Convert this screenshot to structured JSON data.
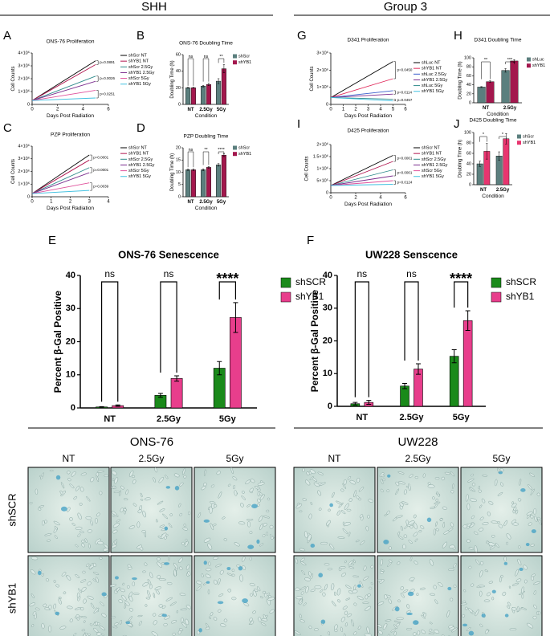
{
  "sections": {
    "left": "SHH",
    "right": "Group 3"
  },
  "chart_data": [
    {
      "panel": "A",
      "type": "line",
      "title": "ONS-76 Proliferation",
      "x_label": "Days Post Radiation",
      "y_label": "Cell Counts",
      "xlim": [
        0,
        6
      ],
      "xticks": [
        0,
        2,
        4,
        6
      ],
      "ylim": [
        0,
        4000000
      ],
      "yticks": [
        0,
        {
          "value": 1000000,
          "label": "1×10⁶"
        },
        {
          "value": 2000000,
          "label": "2×10⁶"
        },
        {
          "value": 3000000,
          "label": "3×10⁶"
        },
        {
          "value": 4000000,
          "label": "4×10⁶"
        }
      ],
      "x": [
        0,
        5
      ],
      "series": [
        {
          "name": "shScr NT",
          "color": "#000000",
          "values": [
            300000,
            3400000
          ]
        },
        {
          "name": "shYB1 NT",
          "color": "#b0154f",
          "values": [
            300000,
            3100000
          ]
        },
        {
          "name": "shScr 2.5Gy",
          "color": "#2e8b8b",
          "values": [
            300000,
            2200000
          ]
        },
        {
          "name": "shYB1 2.5Gy",
          "color": "#7b2d8e",
          "values": [
            300000,
            1800000
          ]
        },
        {
          "name": "shScr 5Gy",
          "color": "#e0529c",
          "values": [
            300000,
            1100000
          ]
        },
        {
          "name": "shYB1 5Gy",
          "color": "#40c0e0",
          "values": [
            300000,
            500000
          ]
        }
      ],
      "annotations": [
        "p=0.0891",
        "p=0.0026",
        "p=0.0251"
      ]
    },
    {
      "panel": "B",
      "type": "bar",
      "title": "ONS-76 Doubling Time",
      "x_label": "Condition",
      "y_label": "Doubling Time (h)",
      "ylim": [
        0,
        60
      ],
      "yticks": [
        0,
        20,
        40,
        60
      ],
      "categories": [
        "NT",
        "2.5Gy",
        "5Gy"
      ],
      "series": [
        {
          "name": "shScr",
          "color": "#5b7f7e",
          "values": [
            20,
            22,
            28
          ],
          "errors": [
            0.5,
            1,
            3
          ]
        },
        {
          "name": "shYB1",
          "color": "#a3174d",
          "values": [
            20,
            24,
            43
          ],
          "errors": [
            0.5,
            1.5,
            5
          ]
        }
      ],
      "significance": [
        "ns",
        "ns",
        "**"
      ]
    },
    {
      "panel": "C",
      "type": "line",
      "title": "PZP Proliferation",
      "x_label": "Days Post Radiation",
      "y_label": "Cell Counts",
      "xlim": [
        0,
        4
      ],
      "xticks": [
        0,
        1,
        2,
        3,
        4
      ],
      "ylim": [
        0,
        4000000
      ],
      "yticks": [
        0,
        {
          "value": 1000000,
          "label": "1×10⁶"
        },
        {
          "value": 2000000,
          "label": "2×10⁶"
        },
        {
          "value": 3000000,
          "label": "3×10⁶"
        },
        {
          "value": 4000000,
          "label": "4×10⁶"
        }
      ],
      "x": [
        0,
        3
      ],
      "series": [
        {
          "name": "shScr NT",
          "color": "#000000",
          "values": [
            250000,
            3300000
          ]
        },
        {
          "name": "shYB1 NT",
          "color": "#b0154f",
          "values": [
            250000,
            2900000
          ]
        },
        {
          "name": "shScr 2.5Gy",
          "color": "#2e8b8b",
          "values": [
            250000,
            2300000
          ]
        },
        {
          "name": "shYB1 2.5Gy",
          "color": "#7b2d8e",
          "values": [
            250000,
            1900000
          ]
        },
        {
          "name": "shScr 5Gy",
          "color": "#e0529c",
          "values": [
            250000,
            1100000
          ]
        },
        {
          "name": "shYB1 5Gy",
          "color": "#40c0e0",
          "values": [
            250000,
            500000
          ]
        }
      ],
      "annotations": [
        "p=0.0001",
        "p=0.0001",
        "p=0.0039"
      ]
    },
    {
      "panel": "D",
      "type": "bar",
      "title": "PZP Doubling Time",
      "x_label": "Condition",
      "y_label": "Doubling Time (h)",
      "ylim": [
        0,
        20
      ],
      "yticks": [
        0,
        5,
        10,
        15,
        20
      ],
      "categories": [
        "NT",
        "2.5Gy",
        "5Gy"
      ],
      "series": [
        {
          "name": "shScr",
          "color": "#5b7f7e",
          "values": [
            11,
            11,
            13
          ],
          "errors": [
            0.3,
            0.4,
            0.5
          ]
        },
        {
          "name": "shYB1",
          "color": "#a3174d",
          "values": [
            11,
            12,
            17
          ],
          "errors": [
            0.4,
            0.3,
            0.6
          ]
        }
      ],
      "significance": [
        "ns",
        "**",
        "****"
      ]
    },
    {
      "panel": "G",
      "type": "line",
      "title": "D341 Proliferation",
      "x_label": "Days Post Radiation",
      "y_label": "Cell Counts",
      "xlim": [
        0,
        6
      ],
      "xticks": [
        0,
        1,
        2,
        3,
        4,
        5,
        6
      ],
      "ylim": [
        0,
        3000000
      ],
      "yticks": [
        0,
        {
          "value": 1000000,
          "label": "1×10⁶"
        },
        {
          "value": 2000000,
          "label": "2×10⁶"
        },
        {
          "value": 3000000,
          "label": "3×10⁶"
        }
      ],
      "x": [
        0,
        5
      ],
      "series": [
        {
          "name": "shLuc NT",
          "color": "#000000",
          "values": [
            400000,
            2500000
          ]
        },
        {
          "name": "shYB1 NT",
          "color": "#e0295a",
          "values": [
            400000,
            1500000
          ]
        },
        {
          "name": "shLuc 2.5Gy",
          "color": "#3a5fcd",
          "values": [
            400000,
            800000
          ]
        },
        {
          "name": "shYB1 2.5Gy",
          "color": "#7b2d8e",
          "values": [
            400000,
            600000
          ]
        },
        {
          "name": "shLuc 5Gy",
          "color": "#2e8b8b",
          "values": [
            400000,
            300000
          ]
        },
        {
          "name": "shYB1 5Gy",
          "color": "#40c0e0",
          "values": [
            400000,
            200000
          ]
        }
      ],
      "annotations": [
        "p=0.0450",
        "p=0.0114",
        "p=0.0457"
      ]
    },
    {
      "panel": "H",
      "type": "bar",
      "title": "D341 Doubling Time",
      "x_label": "Condition",
      "y_label": "Doubling Time (h)",
      "ylim": [
        0,
        100
      ],
      "yticks": [
        0,
        20,
        40,
        60,
        80,
        100
      ],
      "categories": [
        "NT",
        "2.5Gy"
      ],
      "series": [
        {
          "name": "shLuc",
          "color": "#5b7f7e",
          "values": [
            35,
            72
          ],
          "errors": [
            1,
            4
          ]
        },
        {
          "name": "shYB1",
          "color": "#a3174d",
          "values": [
            47,
            93
          ],
          "errors": [
            2,
            3
          ]
        }
      ],
      "significance": [
        "**",
        "***"
      ]
    },
    {
      "panel": "I",
      "type": "line",
      "title": "D425 Proliferation",
      "x_label": "Days Post Radiation",
      "y_label": "Cell Counts",
      "xlim": [
        0,
        6
      ],
      "xticks": [
        0,
        2,
        4,
        6
      ],
      "ylim": [
        0,
        2000000
      ],
      "yticks": [
        0,
        {
          "value": 500000,
          "label": "5×10⁵"
        },
        {
          "value": 1000000,
          "label": "1×10⁶"
        },
        {
          "value": 1500000,
          "label": "1.5×10⁶"
        },
        {
          "value": 2000000,
          "label": "2×10⁶"
        }
      ],
      "x": [
        0,
        5
      ],
      "series": [
        {
          "name": "shScr NT",
          "color": "#000000",
          "values": [
            300000,
            1550000
          ]
        },
        {
          "name": "shYB1 NT",
          "color": "#b0154f",
          "values": [
            300000,
            1300000
          ]
        },
        {
          "name": "shScr 2.5Gy",
          "color": "#2e8b8b",
          "values": [
            300000,
            950000
          ]
        },
        {
          "name": "shYB1 2.5Gy",
          "color": "#7b2d8e",
          "values": [
            300000,
            700000
          ]
        },
        {
          "name": "shScr 5Gy",
          "color": "#e0529c",
          "values": [
            300000,
            500000
          ]
        },
        {
          "name": "shYB1 5Gy",
          "color": "#40c0e0",
          "values": [
            300000,
            350000
          ]
        }
      ],
      "annotations": [
        "p=0.0001",
        "p=0.0001",
        "p=0.0124"
      ]
    },
    {
      "panel": "J",
      "type": "bar",
      "title": "D425 Doubling Time",
      "x_label": "Condition",
      "y_label": "Doubling Time (h)",
      "ylim": [
        0,
        100
      ],
      "yticks": [
        0,
        20,
        40,
        60,
        80,
        100
      ],
      "categories": [
        "NT",
        "2.5Gy"
      ],
      "series": [
        {
          "name": "shScr",
          "color": "#5b7f7e",
          "values": [
            40,
            55
          ],
          "errors": [
            5,
            8
          ]
        },
        {
          "name": "shYB1",
          "color": "#e8356f",
          "values": [
            64,
            88
          ],
          "errors": [
            15,
            10
          ]
        }
      ],
      "significance": [
        "*",
        "*"
      ]
    },
    {
      "panel": "E",
      "type": "bar",
      "title": "ONS-76 Senescence",
      "y_label": "Percent β-Gal Positive",
      "ylim": [
        0,
        40
      ],
      "yticks": [
        0,
        10,
        20,
        30,
        40
      ],
      "categories": [
        "NT",
        "2.5Gy",
        "5Gy"
      ],
      "series": [
        {
          "name": "shSCR",
          "color": "#1a8a1a",
          "values": [
            0.3,
            3.8,
            12
          ],
          "errors": [
            0.1,
            0.6,
            2
          ]
        },
        {
          "name": "shYB1",
          "color": "#e83e8c",
          "values": [
            0.7,
            8.9,
            27.3
          ],
          "errors": [
            0.2,
            0.8,
            4.5
          ]
        }
      ],
      "significance": [
        "ns",
        "ns",
        "****"
      ]
    },
    {
      "panel": "F",
      "type": "bar",
      "title": "UW228 Senscence",
      "y_label": "Percent β-Gal Positive",
      "ylim": [
        0,
        40
      ],
      "yticks": [
        0,
        10,
        20,
        30,
        40
      ],
      "categories": [
        "NT",
        "2.5Gy",
        "5Gy"
      ],
      "series": [
        {
          "name": "shSCR",
          "color": "#1a8a1a",
          "values": [
            0.8,
            6.2,
            15.3
          ],
          "errors": [
            0.4,
            0.8,
            2
          ]
        },
        {
          "name": "shYB1",
          "color": "#e83e8c",
          "values": [
            1.2,
            11.4,
            26.2
          ],
          "errors": [
            0.6,
            1.6,
            3
          ]
        }
      ],
      "significance": [
        "ns",
        "ns",
        "****"
      ]
    }
  ],
  "images": {
    "groups": [
      {
        "title": "ONS-76",
        "columns": [
          "NT",
          "2.5Gy",
          "5Gy"
        ]
      },
      {
        "title": "UW228",
        "columns": [
          "NT",
          "2.5Gy",
          "5Gy"
        ]
      }
    ],
    "rows": [
      "shSCR",
      "shYB1"
    ]
  }
}
